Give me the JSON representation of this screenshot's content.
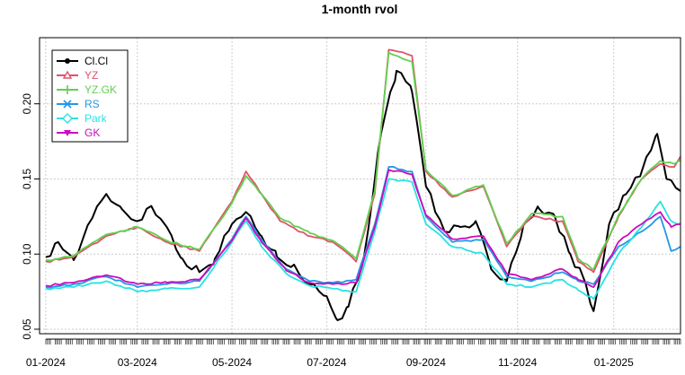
{
  "chart_data": {
    "type": "line",
    "title": "1-month rvol",
    "xlabel": "",
    "ylabel": "",
    "ylim": [
      0.05,
      0.24
    ],
    "x_range": [
      "2023-12-29",
      "2025-02-14"
    ],
    "grid": true,
    "legend_position": "top-left",
    "y_ticks": [
      "0.05",
      "0.10",
      "0.15",
      "0.20"
    ],
    "x_ticks": [
      {
        "date": "2024-01-02",
        "label": "01-2024"
      },
      {
        "date": "2024-03-01",
        "label": "03-2024"
      },
      {
        "date": "2024-05-01",
        "label": "05-2024"
      },
      {
        "date": "2024-07-01",
        "label": "07-2024"
      },
      {
        "date": "2024-09-03",
        "label": "09-2024"
      },
      {
        "date": "2024-11-01",
        "label": "11-2024"
      },
      {
        "date": "2025-01-02",
        "label": "01-2025"
      }
    ],
    "series": [
      {
        "name": "Cl.Cl",
        "color": "#000000",
        "marker": "filled-circle",
        "points": [
          [
            "2024-01-02",
            0.098
          ],
          [
            "2024-01-10",
            0.108
          ],
          [
            "2024-01-20",
            0.096
          ],
          [
            "2024-02-01",
            0.124
          ],
          [
            "2024-02-10",
            0.14
          ],
          [
            "2024-02-20",
            0.13
          ],
          [
            "2024-03-01",
            0.122
          ],
          [
            "2024-03-10",
            0.132
          ],
          [
            "2024-03-20",
            0.118
          ],
          [
            "2024-03-30",
            0.097
          ],
          [
            "2024-04-10",
            0.088
          ],
          [
            "2024-04-20",
            0.097
          ],
          [
            "2024-05-01",
            0.12
          ],
          [
            "2024-05-10",
            0.128
          ],
          [
            "2024-05-20",
            0.112
          ],
          [
            "2024-05-30",
            0.098
          ],
          [
            "2024-06-10",
            0.093
          ],
          [
            "2024-06-20",
            0.08
          ],
          [
            "2024-07-01",
            0.072
          ],
          [
            "2024-07-08",
            0.056
          ],
          [
            "2024-07-15",
            0.065
          ],
          [
            "2024-07-25",
            0.098
          ],
          [
            "2024-08-05",
            0.18
          ],
          [
            "2024-08-15",
            0.222
          ],
          [
            "2024-08-25",
            0.208
          ],
          [
            "2024-09-03",
            0.145
          ],
          [
            "2024-09-15",
            0.115
          ],
          [
            "2024-09-25",
            0.118
          ],
          [
            "2024-10-05",
            0.122
          ],
          [
            "2024-10-15",
            0.09
          ],
          [
            "2024-10-25",
            0.082
          ],
          [
            "2024-11-05",
            0.12
          ],
          [
            "2024-11-15",
            0.13
          ],
          [
            "2024-11-25",
            0.125
          ],
          [
            "2024-12-05",
            0.1
          ],
          [
            "2024-12-15",
            0.08
          ],
          [
            "2024-12-20",
            0.062
          ],
          [
            "2024-12-30",
            0.12
          ],
          [
            "2025-01-10",
            0.14
          ],
          [
            "2025-01-20",
            0.155
          ],
          [
            "2025-01-30",
            0.18
          ],
          [
            "2025-02-05",
            0.15
          ],
          [
            "2025-02-14",
            0.142
          ]
        ]
      },
      {
        "name": "YZ",
        "color": "#df536b",
        "marker": "open-triangle",
        "points": [
          [
            "2024-01-02",
            0.095
          ],
          [
            "2024-01-20",
            0.098
          ],
          [
            "2024-02-10",
            0.112
          ],
          [
            "2024-03-01",
            0.118
          ],
          [
            "2024-03-20",
            0.108
          ],
          [
            "2024-04-10",
            0.102
          ],
          [
            "2024-05-01",
            0.135
          ],
          [
            "2024-05-10",
            0.155
          ],
          [
            "2024-05-20",
            0.14
          ],
          [
            "2024-06-01",
            0.122
          ],
          [
            "2024-06-20",
            0.112
          ],
          [
            "2024-07-05",
            0.108
          ],
          [
            "2024-07-20",
            0.095
          ],
          [
            "2024-08-01",
            0.14
          ],
          [
            "2024-08-10",
            0.236
          ],
          [
            "2024-08-25",
            0.232
          ],
          [
            "2024-09-03",
            0.155
          ],
          [
            "2024-09-20",
            0.138
          ],
          [
            "2024-10-10",
            0.145
          ],
          [
            "2024-10-25",
            0.105
          ],
          [
            "2024-11-10",
            0.125
          ],
          [
            "2024-11-30",
            0.122
          ],
          [
            "2024-12-10",
            0.095
          ],
          [
            "2024-12-20",
            0.088
          ],
          [
            "2025-01-05",
            0.125
          ],
          [
            "2025-01-20",
            0.15
          ],
          [
            "2025-02-01",
            0.16
          ],
          [
            "2025-02-10",
            0.158
          ],
          [
            "2025-02-14",
            0.165
          ]
        ]
      },
      {
        "name": "YZ.GK",
        "color": "#61d04f",
        "marker": "plus",
        "points": [
          [
            "2024-01-02",
            0.096
          ],
          [
            "2024-01-20",
            0.099
          ],
          [
            "2024-02-10",
            0.113
          ],
          [
            "2024-03-01",
            0.118
          ],
          [
            "2024-03-20",
            0.109
          ],
          [
            "2024-04-10",
            0.103
          ],
          [
            "2024-05-01",
            0.134
          ],
          [
            "2024-05-10",
            0.152
          ],
          [
            "2024-05-20",
            0.14
          ],
          [
            "2024-06-01",
            0.124
          ],
          [
            "2024-06-20",
            0.114
          ],
          [
            "2024-07-05",
            0.109
          ],
          [
            "2024-07-20",
            0.097
          ],
          [
            "2024-08-01",
            0.142
          ],
          [
            "2024-08-10",
            0.234
          ],
          [
            "2024-08-25",
            0.228
          ],
          [
            "2024-09-03",
            0.156
          ],
          [
            "2024-09-20",
            0.139
          ],
          [
            "2024-10-10",
            0.146
          ],
          [
            "2024-10-25",
            0.107
          ],
          [
            "2024-11-10",
            0.127
          ],
          [
            "2024-11-30",
            0.125
          ],
          [
            "2024-12-10",
            0.097
          ],
          [
            "2024-12-20",
            0.09
          ],
          [
            "2025-01-05",
            0.126
          ],
          [
            "2025-01-20",
            0.15
          ],
          [
            "2025-02-01",
            0.162
          ],
          [
            "2025-02-10",
            0.16
          ],
          [
            "2025-02-14",
            0.163
          ]
        ]
      },
      {
        "name": "RS",
        "color": "#2297e6",
        "marker": "cross",
        "points": [
          [
            "2024-01-02",
            0.078
          ],
          [
            "2024-01-20",
            0.08
          ],
          [
            "2024-02-10",
            0.085
          ],
          [
            "2024-03-01",
            0.078
          ],
          [
            "2024-03-20",
            0.08
          ],
          [
            "2024-04-10",
            0.082
          ],
          [
            "2024-05-01",
            0.11
          ],
          [
            "2024-05-10",
            0.125
          ],
          [
            "2024-05-20",
            0.11
          ],
          [
            "2024-06-05",
            0.09
          ],
          [
            "2024-06-20",
            0.082
          ],
          [
            "2024-07-05",
            0.081
          ],
          [
            "2024-07-20",
            0.083
          ],
          [
            "2024-08-01",
            0.12
          ],
          [
            "2024-08-10",
            0.158
          ],
          [
            "2024-08-25",
            0.155
          ],
          [
            "2024-09-03",
            0.125
          ],
          [
            "2024-09-20",
            0.108
          ],
          [
            "2024-10-10",
            0.11
          ],
          [
            "2024-10-25",
            0.085
          ],
          [
            "2024-11-10",
            0.082
          ],
          [
            "2024-11-30",
            0.088
          ],
          [
            "2024-12-10",
            0.082
          ],
          [
            "2024-12-20",
            0.08
          ],
          [
            "2025-01-05",
            0.105
          ],
          [
            "2025-01-20",
            0.115
          ],
          [
            "2025-02-01",
            0.125
          ],
          [
            "2025-02-08",
            0.102
          ],
          [
            "2025-02-14",
            0.105
          ]
        ]
      },
      {
        "name": "Park",
        "color": "#28e2e5",
        "marker": "open-diamond",
        "points": [
          [
            "2024-01-02",
            0.077
          ],
          [
            "2024-01-20",
            0.078
          ],
          [
            "2024-02-10",
            0.082
          ],
          [
            "2024-03-01",
            0.075
          ],
          [
            "2024-03-20",
            0.077
          ],
          [
            "2024-04-10",
            0.078
          ],
          [
            "2024-05-01",
            0.108
          ],
          [
            "2024-05-10",
            0.122
          ],
          [
            "2024-05-20",
            0.105
          ],
          [
            "2024-06-05",
            0.087
          ],
          [
            "2024-06-20",
            0.079
          ],
          [
            "2024-07-05",
            0.077
          ],
          [
            "2024-07-20",
            0.075
          ],
          [
            "2024-08-01",
            0.115
          ],
          [
            "2024-08-10",
            0.15
          ],
          [
            "2024-08-25",
            0.148
          ],
          [
            "2024-09-03",
            0.12
          ],
          [
            "2024-09-20",
            0.105
          ],
          [
            "2024-10-10",
            0.1
          ],
          [
            "2024-10-25",
            0.08
          ],
          [
            "2024-11-10",
            0.078
          ],
          [
            "2024-11-30",
            0.083
          ],
          [
            "2024-12-10",
            0.076
          ],
          [
            "2024-12-20",
            0.07
          ],
          [
            "2025-01-05",
            0.1
          ],
          [
            "2025-01-20",
            0.118
          ],
          [
            "2025-02-01",
            0.135
          ],
          [
            "2025-02-08",
            0.122
          ],
          [
            "2025-02-14",
            0.12
          ]
        ]
      },
      {
        "name": "GK",
        "color": "#cd0bbc",
        "marker": "filled-triangle-down",
        "points": [
          [
            "2024-01-02",
            0.079
          ],
          [
            "2024-01-20",
            0.081
          ],
          [
            "2024-02-10",
            0.086
          ],
          [
            "2024-03-01",
            0.08
          ],
          [
            "2024-03-20",
            0.081
          ],
          [
            "2024-04-10",
            0.083
          ],
          [
            "2024-05-01",
            0.109
          ],
          [
            "2024-05-10",
            0.124
          ],
          [
            "2024-05-20",
            0.108
          ],
          [
            "2024-06-05",
            0.089
          ],
          [
            "2024-06-20",
            0.081
          ],
          [
            "2024-07-05",
            0.08
          ],
          [
            "2024-07-20",
            0.081
          ],
          [
            "2024-08-01",
            0.118
          ],
          [
            "2024-08-10",
            0.156
          ],
          [
            "2024-08-25",
            0.153
          ],
          [
            "2024-09-03",
            0.126
          ],
          [
            "2024-09-20",
            0.11
          ],
          [
            "2024-10-10",
            0.112
          ],
          [
            "2024-10-25",
            0.087
          ],
          [
            "2024-11-10",
            0.083
          ],
          [
            "2024-11-30",
            0.09
          ],
          [
            "2024-12-10",
            0.083
          ],
          [
            "2024-12-20",
            0.078
          ],
          [
            "2025-01-05",
            0.108
          ],
          [
            "2025-01-20",
            0.12
          ],
          [
            "2025-02-01",
            0.128
          ],
          [
            "2025-02-08",
            0.118
          ],
          [
            "2025-02-14",
            0.12
          ]
        ]
      }
    ]
  }
}
